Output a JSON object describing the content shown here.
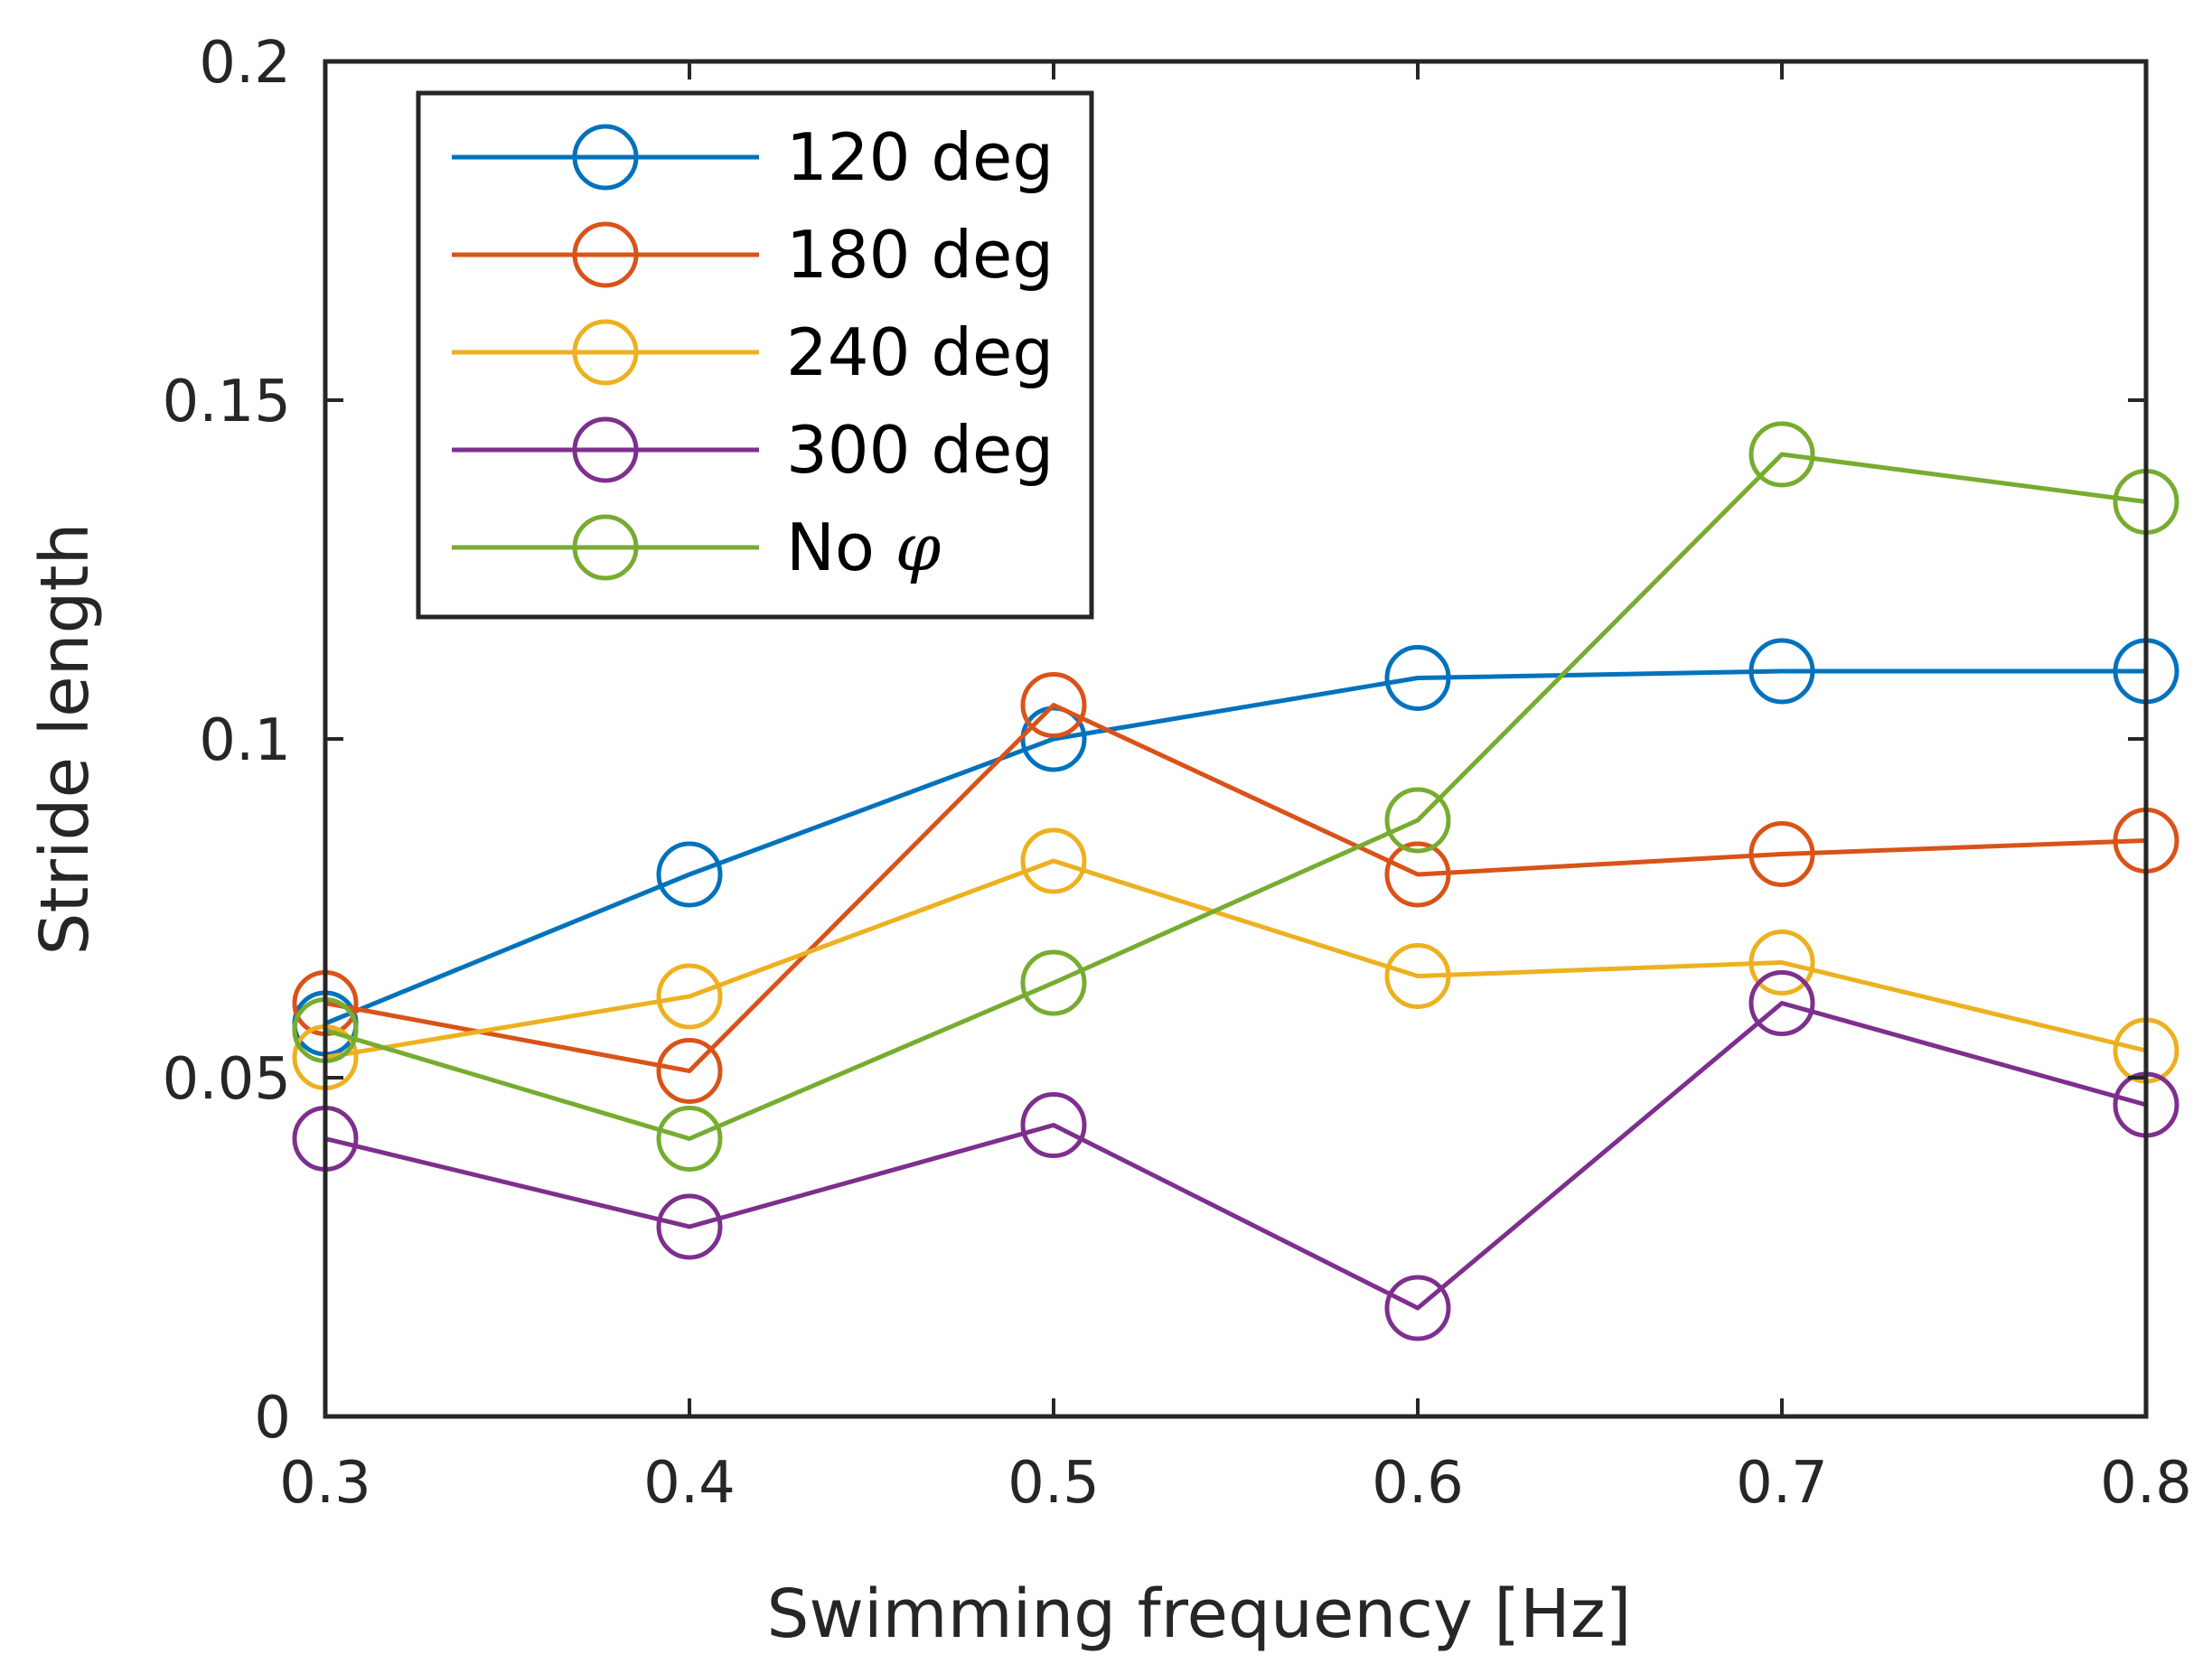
{
  "chart_data": {
    "type": "line",
    "x": [
      0.3,
      0.4,
      0.5,
      0.6,
      0.7,
      0.8
    ],
    "xlabel": "Swimming frequency [Hz]",
    "ylabel": "Stride length",
    "xlim": [
      0.3,
      0.8
    ],
    "ylim": [
      0,
      0.2
    ],
    "xticks": [
      0.3,
      0.4,
      0.5,
      0.6,
      0.7,
      0.8
    ],
    "xtick_labels": [
      "0.3",
      "0.4",
      "0.5",
      "0.6",
      "0.7",
      "0.8"
    ],
    "yticks": [
      0,
      0.05,
      0.1,
      0.15,
      0.2
    ],
    "ytick_labels": [
      "0",
      "0.05",
      "0.1",
      "0.15",
      "0.2"
    ],
    "grid": false,
    "legend_position": "top-left",
    "marker": "open-circle",
    "series": [
      {
        "name": "120 deg",
        "color": "#0072BD",
        "values": [
          0.058,
          0.08,
          0.1,
          0.109,
          0.11,
          0.11
        ]
      },
      {
        "name": "180 deg",
        "color": "#D95319",
        "values": [
          0.061,
          0.051,
          0.105,
          0.08,
          0.083,
          0.085
        ]
      },
      {
        "name": "240 deg",
        "color": "#EDB120",
        "values": [
          0.053,
          0.062,
          0.082,
          0.065,
          0.067,
          0.054
        ]
      },
      {
        "name": "300 deg",
        "color": "#7E2F8E",
        "values": [
          0.041,
          0.028,
          0.043,
          0.016,
          0.061,
          0.046
        ]
      },
      {
        "name": "No",
        "name_symbol": "φ",
        "color": "#77AC30",
        "values": [
          0.057,
          0.041,
          0.064,
          0.088,
          0.142,
          0.135
        ]
      }
    ]
  }
}
